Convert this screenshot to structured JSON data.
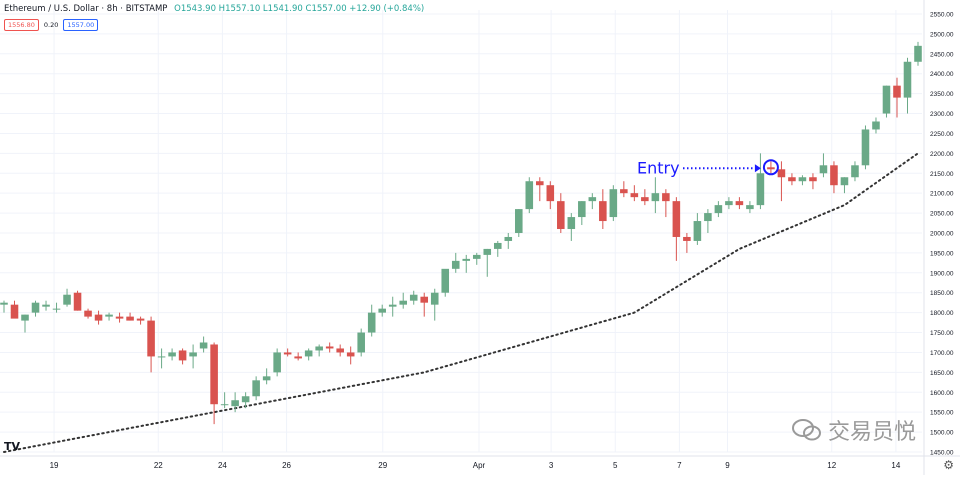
{
  "header": {
    "symbol": "Ethereum / U.S. Dollar · 8h · BITSTAMP",
    "ohlc": "O1543.90 H1557.10 L1541.90 C1557.00 +12.90 (+0.84%)",
    "sell_price": "1556.80",
    "spread": "0.20",
    "buy_price": "1557.00"
  },
  "watermark": "交易员悦",
  "tv_logo": "TV",
  "colors": {
    "up": "#6aa987",
    "down": "#d9534f",
    "wick": "#6b6b6b",
    "annotation": "#1a1aff",
    "trendline": "#333333"
  },
  "chart_data": {
    "type": "candlestick",
    "title": "",
    "ylim": [
      1450,
      2560
    ],
    "y_ticks": [
      1450,
      1500,
      1550,
      1600,
      1650,
      1700,
      1750,
      1800,
      1850,
      1900,
      1950,
      2000,
      2050,
      2100,
      2150,
      2200,
      2250,
      2300,
      2350,
      2400,
      2450,
      2500,
      2550
    ],
    "x_ticks": [
      "19",
      "22",
      "24",
      "26",
      "29",
      "Apr",
      "3",
      "5",
      "7",
      "9",
      "12",
      "14"
    ],
    "candles": [
      {
        "o": 1820,
        "h": 1830,
        "l": 1800,
        "c": 1825
      },
      {
        "o": 1820,
        "h": 1830,
        "l": 1795,
        "c": 1785
      },
      {
        "o": 1780,
        "h": 1795,
        "l": 1750,
        "c": 1795
      },
      {
        "o": 1800,
        "h": 1830,
        "l": 1790,
        "c": 1825
      },
      {
        "o": 1815,
        "h": 1830,
        "l": 1805,
        "c": 1820
      },
      {
        "o": 1810,
        "h": 1825,
        "l": 1800,
        "c": 1810
      },
      {
        "o": 1820,
        "h": 1860,
        "l": 1815,
        "c": 1845
      },
      {
        "o": 1850,
        "h": 1855,
        "l": 1805,
        "c": 1805
      },
      {
        "o": 1805,
        "h": 1810,
        "l": 1785,
        "c": 1790
      },
      {
        "o": 1795,
        "h": 1805,
        "l": 1770,
        "c": 1780
      },
      {
        "o": 1790,
        "h": 1800,
        "l": 1780,
        "c": 1795
      },
      {
        "o": 1790,
        "h": 1800,
        "l": 1775,
        "c": 1785
      },
      {
        "o": 1790,
        "h": 1800,
        "l": 1780,
        "c": 1780
      },
      {
        "o": 1785,
        "h": 1790,
        "l": 1770,
        "c": 1780
      },
      {
        "o": 1780,
        "h": 1790,
        "l": 1650,
        "c": 1690
      },
      {
        "o": 1690,
        "h": 1710,
        "l": 1660,
        "c": 1690
      },
      {
        "o": 1690,
        "h": 1710,
        "l": 1680,
        "c": 1700
      },
      {
        "o": 1705,
        "h": 1710,
        "l": 1670,
        "c": 1680
      },
      {
        "o": 1690,
        "h": 1720,
        "l": 1660,
        "c": 1700
      },
      {
        "o": 1710,
        "h": 1740,
        "l": 1700,
        "c": 1725
      },
      {
        "o": 1720,
        "h": 1725,
        "l": 1520,
        "c": 1570
      },
      {
        "o": 1570,
        "h": 1600,
        "l": 1560,
        "c": 1570
      },
      {
        "o": 1565,
        "h": 1600,
        "l": 1550,
        "c": 1580
      },
      {
        "o": 1575,
        "h": 1600,
        "l": 1560,
        "c": 1590
      },
      {
        "o": 1590,
        "h": 1640,
        "l": 1580,
        "c": 1630
      },
      {
        "o": 1630,
        "h": 1660,
        "l": 1620,
        "c": 1640
      },
      {
        "o": 1650,
        "h": 1710,
        "l": 1640,
        "c": 1700
      },
      {
        "o": 1700,
        "h": 1710,
        "l": 1690,
        "c": 1695
      },
      {
        "o": 1690,
        "h": 1700,
        "l": 1680,
        "c": 1685
      },
      {
        "o": 1690,
        "h": 1710,
        "l": 1680,
        "c": 1705
      },
      {
        "o": 1705,
        "h": 1720,
        "l": 1690,
        "c": 1715
      },
      {
        "o": 1715,
        "h": 1725,
        "l": 1700,
        "c": 1710
      },
      {
        "o": 1710,
        "h": 1720,
        "l": 1690,
        "c": 1700
      },
      {
        "o": 1700,
        "h": 1715,
        "l": 1670,
        "c": 1690
      },
      {
        "o": 1700,
        "h": 1760,
        "l": 1690,
        "c": 1750
      },
      {
        "o": 1750,
        "h": 1820,
        "l": 1740,
        "c": 1800
      },
      {
        "o": 1800,
        "h": 1820,
        "l": 1790,
        "c": 1810
      },
      {
        "o": 1815,
        "h": 1840,
        "l": 1790,
        "c": 1820
      },
      {
        "o": 1820,
        "h": 1850,
        "l": 1810,
        "c": 1830
      },
      {
        "o": 1830,
        "h": 1855,
        "l": 1820,
        "c": 1845
      },
      {
        "o": 1840,
        "h": 1850,
        "l": 1790,
        "c": 1825
      },
      {
        "o": 1820,
        "h": 1860,
        "l": 1780,
        "c": 1850
      },
      {
        "o": 1850,
        "h": 1900,
        "l": 1840,
        "c": 1910
      },
      {
        "o": 1910,
        "h": 1950,
        "l": 1900,
        "c": 1930
      },
      {
        "o": 1930,
        "h": 1945,
        "l": 1900,
        "c": 1935
      },
      {
        "o": 1935,
        "h": 1950,
        "l": 1920,
        "c": 1945
      },
      {
        "o": 1945,
        "h": 1960,
        "l": 1890,
        "c": 1960
      },
      {
        "o": 1960,
        "h": 1980,
        "l": 1940,
        "c": 1975
      },
      {
        "o": 1980,
        "h": 2000,
        "l": 1960,
        "c": 1990
      },
      {
        "o": 2000,
        "h": 2060,
        "l": 1990,
        "c": 2060
      },
      {
        "o": 2060,
        "h": 2140,
        "l": 2050,
        "c": 2130
      },
      {
        "o": 2130,
        "h": 2140,
        "l": 2080,
        "c": 2120
      },
      {
        "o": 2120,
        "h": 2130,
        "l": 2060,
        "c": 2080
      },
      {
        "o": 2080,
        "h": 2100,
        "l": 2000,
        "c": 2010
      },
      {
        "o": 2010,
        "h": 2050,
        "l": 1980,
        "c": 2040
      },
      {
        "o": 2040,
        "h": 2080,
        "l": 2020,
        "c": 2080
      },
      {
        "o": 2080,
        "h": 2100,
        "l": 2060,
        "c": 2090
      },
      {
        "o": 2080,
        "h": 2110,
        "l": 2010,
        "c": 2030
      },
      {
        "o": 2040,
        "h": 2120,
        "l": 2030,
        "c": 2110
      },
      {
        "o": 2110,
        "h": 2130,
        "l": 2090,
        "c": 2100
      },
      {
        "o": 2100,
        "h": 2120,
        "l": 2080,
        "c": 2090
      },
      {
        "o": 2090,
        "h": 2110,
        "l": 2070,
        "c": 2080
      },
      {
        "o": 2080,
        "h": 2140,
        "l": 2050,
        "c": 2100
      },
      {
        "o": 2100,
        "h": 2110,
        "l": 2040,
        "c": 2080
      },
      {
        "o": 2080,
        "h": 2090,
        "l": 1930,
        "c": 1990
      },
      {
        "o": 1990,
        "h": 2000,
        "l": 1950,
        "c": 1980
      },
      {
        "o": 1980,
        "h": 2050,
        "l": 1970,
        "c": 2030
      },
      {
        "o": 2030,
        "h": 2060,
        "l": 2000,
        "c": 2050
      },
      {
        "o": 2050,
        "h": 2080,
        "l": 2040,
        "c": 2070
      },
      {
        "o": 2070,
        "h": 2090,
        "l": 2060,
        "c": 2080
      },
      {
        "o": 2080,
        "h": 2090,
        "l": 2060,
        "c": 2070
      },
      {
        "o": 2060,
        "h": 2080,
        "l": 2050,
        "c": 2070
      },
      {
        "o": 2070,
        "h": 2200,
        "l": 2060,
        "c": 2150
      },
      {
        "o": 2165,
        "h": 2180,
        "l": 2150,
        "c": 2160
      },
      {
        "o": 2160,
        "h": 2180,
        "l": 2080,
        "c": 2140
      },
      {
        "o": 2140,
        "h": 2150,
        "l": 2120,
        "c": 2130
      },
      {
        "o": 2130,
        "h": 2145,
        "l": 2120,
        "c": 2140
      },
      {
        "o": 2140,
        "h": 2150,
        "l": 2110,
        "c": 2130
      },
      {
        "o": 2150,
        "h": 2200,
        "l": 2140,
        "c": 2170
      },
      {
        "o": 2170,
        "h": 2180,
        "l": 2100,
        "c": 2120
      },
      {
        "o": 2120,
        "h": 2140,
        "l": 2100,
        "c": 2140
      },
      {
        "o": 2140,
        "h": 2180,
        "l": 2130,
        "c": 2170
      },
      {
        "o": 2170,
        "h": 2270,
        "l": 2160,
        "c": 2260
      },
      {
        "o": 2260,
        "h": 2290,
        "l": 2250,
        "c": 2280
      },
      {
        "o": 2300,
        "h": 2370,
        "l": 2290,
        "c": 2370
      },
      {
        "o": 2370,
        "h": 2390,
        "l": 2290,
        "c": 2340
      },
      {
        "o": 2340,
        "h": 2440,
        "l": 2300,
        "c": 2430
      },
      {
        "o": 2430,
        "h": 2480,
        "l": 2420,
        "c": 2470
      }
    ],
    "annotation": {
      "label": "Entry",
      "candle_index": 73,
      "price": 2165
    },
    "trendline": {
      "type": "dotted-curve",
      "points": [
        [
          0,
          1450
        ],
        [
          20,
          1550
        ],
        [
          40,
          1650
        ],
        [
          60,
          1800
        ],
        [
          70,
          1960
        ],
        [
          80,
          2070
        ],
        [
          87,
          2200
        ]
      ]
    }
  }
}
